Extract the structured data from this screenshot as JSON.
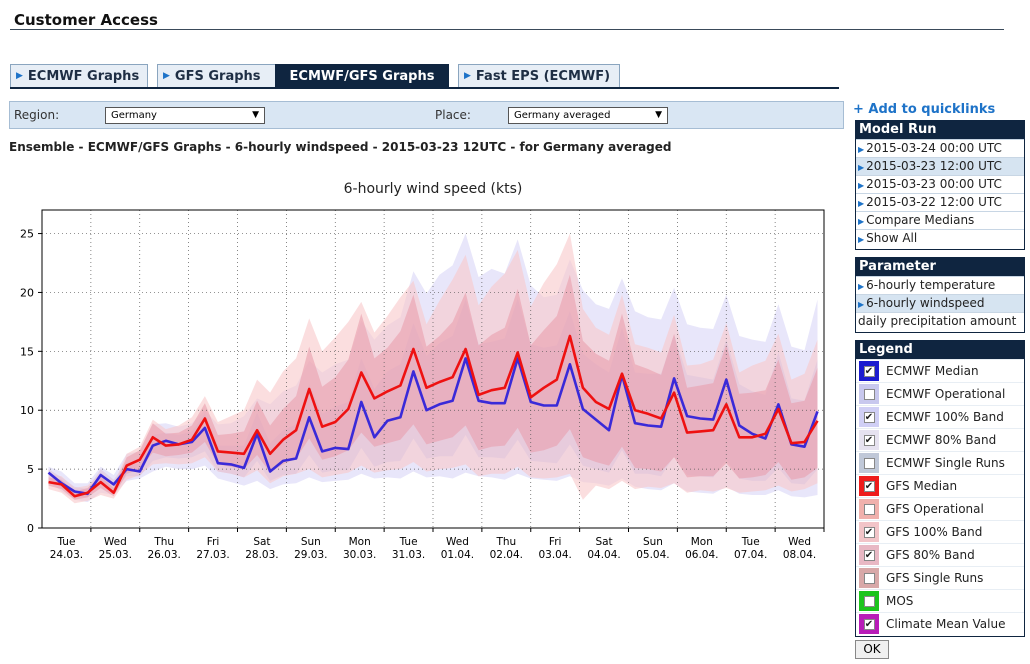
{
  "header": {
    "title": "Customer Access"
  },
  "tabs": [
    {
      "label": "ECMWF Graphs",
      "active": false
    },
    {
      "label": "GFS Graphs",
      "active": false
    },
    {
      "label": "ECMWF/GFS Graphs",
      "active": true
    },
    {
      "label": "Fast EPS (ECMWF)",
      "active": false
    }
  ],
  "filters": {
    "region_label": "Region:",
    "region_value": "Germany",
    "place_label": "Place:",
    "place_value": "Germany averaged"
  },
  "chart_heading": "Ensemble - ECMWF/GFS Graphs - 6-hourly windspeed - 2015-03-23 12UTC - for Germany averaged",
  "sidebar": {
    "quicklink_label": "+ Add to quicklinks",
    "model_run": {
      "title": "Model Run",
      "items": [
        {
          "label": "2015-03-24 00:00 UTC",
          "highlighted": false
        },
        {
          "label": "2015-03-23 12:00 UTC",
          "highlighted": true
        },
        {
          "label": "2015-03-23 00:00 UTC",
          "highlighted": false
        },
        {
          "label": "2015-03-22 12:00 UTC",
          "highlighted": false
        },
        {
          "label": "Compare Medians",
          "highlighted": false
        },
        {
          "label": "Show All",
          "highlighted": false
        }
      ]
    },
    "parameter": {
      "title": "Parameter",
      "items": [
        {
          "label": "6-hourly temperature",
          "highlighted": false,
          "bullet": true
        },
        {
          "label": "6-hourly windspeed",
          "highlighted": true,
          "bullet": true
        },
        {
          "label": "daily precipitation amount",
          "highlighted": false,
          "bullet": false
        }
      ]
    },
    "legend": {
      "title": "Legend",
      "items": [
        {
          "label": "ECMWF Median",
          "color": "#1c1ccf",
          "checked": true
        },
        {
          "label": "ECMWF Operational",
          "color": "#c8c8ee",
          "checked": false
        },
        {
          "label": "ECMWF 100% Band",
          "color": "#d0cff5",
          "checked": true
        },
        {
          "label": "ECMWF 80% Band",
          "color": "#e6e2f0",
          "checked": true
        },
        {
          "label": "ECMWF Single Runs",
          "color": "#c0c8d8",
          "checked": false
        },
        {
          "label": "GFS Median",
          "color": "#ee1c1c",
          "checked": true
        },
        {
          "label": "GFS Operational",
          "color": "#f0b0ac",
          "checked": false
        },
        {
          "label": "GFS 100% Band",
          "color": "#f2c4c8",
          "checked": true
        },
        {
          "label": "GFS 80% Band",
          "color": "#e8b8c4",
          "checked": true
        },
        {
          "label": "GFS Single Runs",
          "color": "#d8a8a8",
          "checked": false
        },
        {
          "label": "MOS",
          "color": "#1cc41c",
          "checked": false
        },
        {
          "label": "Climate Mean Value",
          "color": "#b81cb8",
          "checked": true
        }
      ]
    },
    "ok_label": "OK"
  },
  "chart_data": {
    "type": "line",
    "title": "6-hourly wind speed (kts)",
    "ylim": [
      0,
      27
    ],
    "yticks": [
      0,
      5,
      10,
      15,
      20,
      25
    ],
    "x_step_hours": 6,
    "x_start": "2015-03-23 12:00",
    "x_ticks": [
      {
        "day": "Tue",
        "date": "24.03."
      },
      {
        "day": "Wed",
        "date": "25.03."
      },
      {
        "day": "Thu",
        "date": "26.03."
      },
      {
        "day": "Fri",
        "date": "27.03."
      },
      {
        "day": "Sat",
        "date": "28.03."
      },
      {
        "day": "Sun",
        "date": "29.03."
      },
      {
        "day": "Mon",
        "date": "30.03."
      },
      {
        "day": "Tue",
        "date": "31.03."
      },
      {
        "day": "Wed",
        "date": "01.04."
      },
      {
        "day": "Thu",
        "date": "02.04."
      },
      {
        "day": "Fri",
        "date": "03.04."
      },
      {
        "day": "Sat",
        "date": "04.04."
      },
      {
        "day": "Sun",
        "date": "05.04."
      },
      {
        "day": "Mon",
        "date": "06.04."
      },
      {
        "day": "Tue",
        "date": "07.04."
      },
      {
        "day": "Wed",
        "date": "08.04."
      }
    ],
    "grid": true,
    "series": [
      {
        "name": "ECMWF Median",
        "color": "#3a2ad8",
        "values": [
          4.7,
          3.8,
          3.1,
          2.9,
          4.5,
          3.7,
          5.0,
          4.8,
          7.0,
          7.4,
          7.1,
          7.3,
          8.5,
          5.5,
          5.4,
          5.1,
          8.0,
          4.8,
          5.7,
          5.9,
          9.4,
          6.5,
          6.8,
          6.7,
          10.7,
          7.7,
          9.1,
          9.4,
          13.3,
          10.0,
          10.5,
          10.8,
          14.4,
          10.8,
          10.6,
          10.6,
          14.4,
          10.7,
          10.4,
          10.4,
          13.9,
          10.1,
          9.2,
          8.3,
          13.0,
          8.9,
          8.7,
          8.6,
          12.7,
          9.5,
          9.3,
          9.2,
          12.6,
          8.7,
          8.0,
          7.6,
          10.5,
          7.1,
          6.9,
          9.9
        ]
      },
      {
        "name": "GFS Median",
        "color": "#ee1111",
        "values": [
          3.9,
          3.7,
          2.7,
          3.0,
          3.9,
          3.0,
          5.3,
          5.8,
          7.7,
          7.0,
          7.1,
          7.5,
          9.3,
          6.5,
          6.4,
          6.3,
          8.3,
          6.3,
          7.5,
          8.3,
          11.8,
          8.6,
          9.0,
          10.1,
          13.2,
          11.0,
          11.6,
          12.1,
          15.2,
          11.9,
          12.4,
          12.8,
          15.2,
          11.3,
          11.7,
          11.9,
          14.9,
          11.1,
          11.9,
          12.6,
          16.3,
          11.9,
          10.7,
          10.1,
          13.1,
          10.0,
          9.7,
          9.3,
          11.5,
          8.1,
          8.2,
          8.3,
          10.5,
          7.7,
          7.7,
          8.0,
          10.1,
          7.2,
          7.3,
          9.1
        ]
      }
    ],
    "bands": [
      {
        "name": "ECMWF 100% Band",
        "color": "#d8d6f7",
        "low": [
          4.0,
          3.1,
          2.4,
          2.2,
          3.0,
          2.8,
          4.0,
          4.2,
          4.8,
          5.2,
          5.0,
          5.0,
          5.3,
          4.2,
          3.9,
          3.6,
          4.0,
          3.3,
          3.7,
          3.8,
          4.3,
          3.9,
          4.0,
          4.1,
          4.6,
          4.2,
          4.3,
          4.2,
          4.8,
          4.3,
          4.4,
          4.2,
          4.7,
          4.4,
          4.3,
          4.1,
          4.6,
          4.2,
          4.1,
          4.0,
          4.4,
          3.9,
          3.8,
          3.6,
          4.2,
          3.5,
          3.3,
          3.2,
          3.8,
          3.1,
          3.0,
          2.9,
          3.5,
          2.9,
          2.8,
          2.8,
          3.2,
          2.7,
          2.6,
          2.8
        ],
        "high": [
          5.2,
          4.8,
          3.8,
          3.8,
          5.2,
          4.5,
          6.3,
          6.5,
          8.8,
          8.9,
          8.6,
          8.9,
          10.0,
          8.8,
          8.9,
          9.5,
          11.0,
          10.5,
          11.6,
          12.1,
          14.2,
          13.2,
          13.9,
          14.3,
          17.6,
          16.0,
          17.2,
          17.9,
          21.8,
          19.9,
          21.5,
          22.3,
          25.0,
          21.3,
          22.0,
          21.6,
          24.5,
          20.6,
          19.6,
          19.8,
          22.8,
          20.2,
          19.0,
          18.6,
          21.2,
          18.4,
          17.9,
          17.7,
          20.4,
          17.3,
          17.0,
          16.9,
          19.8,
          16.3,
          16.0,
          15.8,
          19.0,
          15.4,
          15.1,
          19.4
        ]
      },
      {
        "name": "GFS 100% Band",
        "color": "#f8c8c9",
        "low": [
          3.3,
          3.0,
          2.1,
          2.3,
          2.8,
          2.5,
          4.1,
          4.5,
          5.4,
          5.5,
          5.4,
          5.5,
          6.0,
          4.8,
          4.6,
          4.3,
          4.9,
          3.8,
          4.4,
          4.6,
          5.0,
          4.3,
          4.5,
          4.7,
          5.3,
          4.7,
          4.9,
          5.0,
          5.6,
          4.8,
          5.0,
          5.1,
          5.4,
          4.4,
          4.6,
          4.6,
          5.2,
          4.3,
          4.2,
          4.3,
          4.6,
          2.4,
          3.6,
          3.3,
          4.0,
          3.3,
          3.5,
          3.4,
          3.8,
          3.0,
          3.2,
          3.1,
          3.4,
          3.0,
          3.1,
          3.2,
          3.6,
          3.1,
          3.3,
          3.8
        ],
        "high": [
          4.6,
          4.4,
          3.4,
          3.6,
          4.7,
          3.7,
          6.3,
          6.9,
          9.2,
          8.4,
          8.7,
          9.4,
          11.2,
          9.0,
          9.5,
          10.0,
          12.6,
          11.5,
          13.3,
          14.4,
          17.8,
          15.0,
          16.2,
          17.5,
          19.2,
          16.6,
          18.0,
          19.6,
          21.0,
          17.3,
          19.3,
          21.1,
          23.2,
          18.9,
          20.5,
          21.6,
          23.6,
          18.8,
          20.8,
          22.4,
          25.0,
          18.6,
          17.0,
          16.4,
          19.8,
          15.6,
          15.3,
          14.9,
          18.1,
          13.8,
          13.9,
          14.3,
          17.4,
          13.2,
          13.8,
          14.2,
          16.5,
          12.6,
          13.1,
          16.0
        ]
      },
      {
        "name": "ECMWF 80% Band",
        "color": "#e0c4dc",
        "low": [
          4.3,
          3.4,
          2.7,
          2.6,
          3.8,
          3.1,
          4.4,
          4.4,
          5.7,
          6.0,
          5.9,
          6.0,
          6.5,
          4.8,
          4.6,
          4.3,
          5.7,
          4.0,
          4.5,
          4.6,
          6.2,
          4.7,
          4.9,
          4.9,
          6.8,
          5.2,
          5.6,
          5.7,
          7.6,
          5.9,
          6.1,
          6.1,
          7.9,
          6.0,
          6.0,
          5.9,
          7.5,
          5.7,
          5.6,
          5.5,
          7.1,
          5.3,
          5.0,
          4.7,
          6.6,
          4.6,
          4.6,
          4.4,
          6.1,
          4.5,
          4.4,
          4.3,
          5.8,
          4.2,
          4.0,
          4.0,
          5.1,
          3.8,
          3.7,
          5.0
        ],
        "high": [
          5.0,
          4.3,
          3.5,
          3.3,
          5.0,
          4.1,
          5.6,
          5.4,
          7.9,
          8.1,
          7.9,
          8.2,
          9.7,
          7.0,
          7.0,
          7.0,
          9.8,
          7.2,
          8.3,
          8.8,
          12.2,
          9.7,
          10.3,
          10.7,
          14.4,
          11.8,
          13.3,
          13.9,
          17.4,
          14.6,
          15.7,
          16.3,
          19.4,
          15.6,
          15.8,
          16.1,
          19.5,
          15.6,
          15.3,
          15.5,
          18.4,
          14.8,
          13.9,
          13.2,
          17.0,
          13.2,
          13.1,
          13.1,
          16.4,
          13.0,
          12.8,
          12.6,
          16.0,
          12.2,
          11.6,
          11.3,
          14.9,
          11.0,
          10.8,
          14.3
        ]
      },
      {
        "name": "GFS 80% Band",
        "color": "#ea9fae",
        "low": [
          3.6,
          3.3,
          2.4,
          2.6,
          3.4,
          2.7,
          4.6,
          5.0,
          6.4,
          6.1,
          6.2,
          6.4,
          7.3,
          5.4,
          5.2,
          5.0,
          6.2,
          4.7,
          5.4,
          5.9,
          7.6,
          5.8,
          6.1,
          6.6,
          8.1,
          6.9,
          7.2,
          7.5,
          8.8,
          7.1,
          7.4,
          7.7,
          8.7,
          6.6,
          6.9,
          7.0,
          8.5,
          6.4,
          6.6,
          7.0,
          8.4,
          6.0,
          5.6,
          5.3,
          6.9,
          5.1,
          5.0,
          4.8,
          6.0,
          4.3,
          4.4,
          4.4,
          5.5,
          4.2,
          4.3,
          4.5,
          5.6,
          4.1,
          4.3,
          5.1
        ],
        "high": [
          4.3,
          4.1,
          3.1,
          3.4,
          4.4,
          3.4,
          6.0,
          6.6,
          8.9,
          8.0,
          8.1,
          8.7,
          10.6,
          7.9,
          8.0,
          8.2,
          10.8,
          8.7,
          10.1,
          11.2,
          15.4,
          12.0,
          12.8,
          14.3,
          18.2,
          14.4,
          15.3,
          16.7,
          19.8,
          15.4,
          16.3,
          17.5,
          20.0,
          15.5,
          16.4,
          17.0,
          20.3,
          15.5,
          16.8,
          18.0,
          21.5,
          15.9,
          14.8,
          14.2,
          18.2,
          13.9,
          13.5,
          13.0,
          16.5,
          11.9,
          12.1,
          12.3,
          15.6,
          11.4,
          11.5,
          11.7,
          14.3,
          10.6,
          10.8,
          13.6
        ]
      }
    ]
  }
}
